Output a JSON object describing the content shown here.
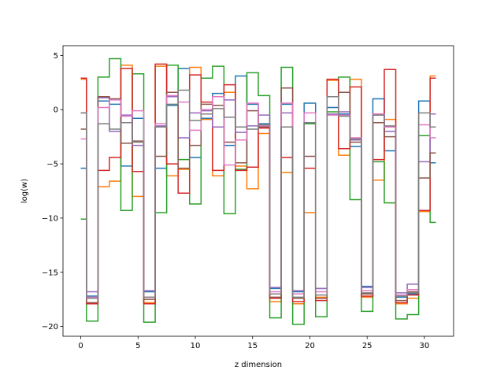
{
  "chart_data": {
    "type": "line",
    "step": "mid",
    "title": "",
    "xlabel": "z dimension",
    "ylabel": "log(w)",
    "xlim": [
      -1.55,
      32.55
    ],
    "ylim": [
      -20.9,
      5.9
    ],
    "xticks": [
      0,
      5,
      10,
      15,
      20,
      25,
      30
    ],
    "yticks": [
      5,
      0,
      -5,
      -10,
      -15,
      -20
    ],
    "grid": false,
    "legend": "none",
    "x": [
      0,
      1,
      2,
      3,
      4,
      5,
      6,
      7,
      8,
      9,
      10,
      11,
      12,
      13,
      14,
      15,
      16,
      17,
      18,
      19,
      20,
      21,
      22,
      23,
      24,
      25,
      26,
      27,
      28,
      29,
      30,
      31
    ],
    "series": [
      {
        "color": "#1f77b4",
        "values": [
          -5.4,
          -17.2,
          0.8,
          0.5,
          -5.2,
          -0.8,
          -16.8,
          -5.4,
          0.4,
          3.8,
          -4.4,
          -0.8,
          1.5,
          -3.3,
          3.1,
          0.5,
          -1.3,
          -16.5,
          0.5,
          -16.8,
          0.6,
          -16.5,
          0.2,
          -0.4,
          -3.4,
          -16.3,
          1.0,
          -3.8,
          -17.3,
          -17.0,
          0.8,
          -4.9
        ]
      },
      {
        "color": "#ff7f0e",
        "values": [
          2.8,
          -17.4,
          -7.1,
          -6.6,
          4.1,
          -8.0,
          -17.8,
          4.0,
          -6.1,
          -5.5,
          3.9,
          -0.9,
          -6.1,
          1.6,
          -5.2,
          -7.3,
          -2.2,
          -17.7,
          -5.8,
          -17.9,
          -9.5,
          -17.3,
          2.7,
          -4.2,
          2.8,
          -17.3,
          -6.5,
          -0.9,
          -17.9,
          -17.4,
          -9.4,
          3.1
        ]
      },
      {
        "color": "#2ca02c",
        "values": [
          -10.1,
          -19.5,
          3.0,
          4.7,
          -9.3,
          3.3,
          -19.6,
          -9.5,
          4.1,
          -4.6,
          -8.7,
          2.9,
          4.0,
          -9.6,
          -5.5,
          3.4,
          1.3,
          -19.2,
          3.9,
          -19.8,
          -1.3,
          -19.1,
          -0.2,
          3.0,
          -8.3,
          -18.6,
          -4.8,
          -8.6,
          -19.3,
          -18.9,
          -2.4,
          -10.4
        ]
      },
      {
        "color": "#d62728",
        "values": [
          2.9,
          -17.9,
          -5.6,
          -4.4,
          3.8,
          -5.7,
          -17.9,
          4.2,
          -5.0,
          -7.7,
          3.2,
          0.7,
          -5.6,
          2.3,
          -5.6,
          -5.3,
          -1.7,
          -17.4,
          -4.4,
          -17.7,
          -5.4,
          -17.6,
          2.8,
          -3.6,
          2.1,
          -17.2,
          -4.6,
          3.7,
          -17.8,
          -17.1,
          -9.3,
          2.9
        ]
      },
      {
        "color": "#9467bd",
        "values": [
          -0.3,
          -16.8,
          1.1,
          -2.0,
          -0.5,
          -3.3,
          -16.7,
          -1.5,
          1.2,
          -2.6,
          -0.3,
          -0.1,
          -1.6,
          0.9,
          -2.1,
          -1.5,
          -0.5,
          -16.4,
          -0.3,
          -16.7,
          -1.2,
          -16.5,
          -0.4,
          -0.2,
          -2.8,
          -16.4,
          -0.5,
          -2.0,
          -16.9,
          -16.1,
          -4.8,
          -0.4
        ]
      },
      {
        "color": "#8c564b",
        "values": [
          -1.8,
          -17.8,
          1.2,
          1.0,
          -3.1,
          -2.9,
          -17.5,
          -4.3,
          1.6,
          -5.4,
          -3.3,
          0.5,
          0.4,
          -3.0,
          -4.9,
          -0.1,
          -1.6,
          -17.3,
          2.0,
          -17.4,
          -4.3,
          -17.4,
          1.2,
          1.6,
          -3.0,
          -17.0,
          -1.2,
          -2.5,
          -17.6,
          -16.8,
          -6.3,
          -4.0
        ]
      },
      {
        "color": "#e377c2",
        "values": [
          -2.7,
          -17.3,
          0.2,
          0.9,
          -0.6,
          -0.1,
          -17.3,
          -1.3,
          1.3,
          0.7,
          -1.9,
          0.0,
          1.2,
          -5.1,
          -2.8,
          0.6,
          -1.5,
          -16.8,
          0.6,
          -17.0,
          -0.3,
          -16.8,
          -0.5,
          -0.5,
          -2.6,
          -16.7,
          -0.4,
          -1.6,
          -17.1,
          -16.6,
          -1.4,
          -2.6
        ]
      },
      {
        "color": "#7f7f7f",
        "values": [
          -0.3,
          -17.4,
          -1.3,
          -1.8,
          -1.2,
          -3.0,
          -17.3,
          -1.6,
          0.5,
          1.8,
          -1.0,
          -0.4,
          0.1,
          -0.7,
          -1.6,
          -1.8,
          -1.4,
          -17.0,
          -1.6,
          -17.3,
          -1.2,
          -17.1,
          1.2,
          -0.6,
          -2.7,
          -16.9,
          -0.5,
          -1.5,
          -17.2,
          -16.9,
          -0.3,
          -1.6
        ]
      }
    ]
  }
}
